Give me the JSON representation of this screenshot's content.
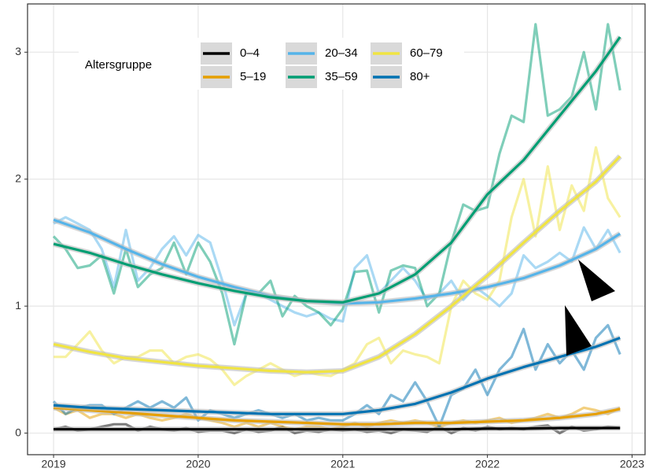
{
  "chart_data": {
    "type": "line",
    "legend_title": "Altersgruppe",
    "x": [
      2019.0,
      2019.083,
      2019.167,
      2019.25,
      2019.333,
      2019.417,
      2019.5,
      2019.583,
      2019.667,
      2019.75,
      2019.833,
      2019.917,
      2020.0,
      2020.083,
      2020.167,
      2020.25,
      2020.333,
      2020.417,
      2020.5,
      2020.583,
      2020.667,
      2020.75,
      2020.833,
      2020.917,
      2021.0,
      2021.083,
      2021.167,
      2021.25,
      2021.333,
      2021.417,
      2021.5,
      2021.583,
      2021.667,
      2021.75,
      2021.833,
      2021.917,
      2022.0,
      2022.083,
      2022.167,
      2022.25,
      2022.333,
      2022.417,
      2022.5,
      2022.583,
      2022.667,
      2022.75,
      2022.833,
      2022.917
    ],
    "trend_x": [
      2019,
      2019.25,
      2019.5,
      2019.75,
      2020,
      2020.25,
      2020.5,
      2020.75,
      2021,
      2021.25,
      2021.5,
      2021.75,
      2022,
      2022.25,
      2022.5,
      2022.75,
      2022.917
    ],
    "series": [
      {
        "name": "0–4",
        "color": "#000000",
        "values": [
          0.03,
          0.05,
          0.02,
          0.03,
          0.05,
          0.07,
          0.07,
          0.02,
          0.05,
          0.03,
          0.02,
          0.04,
          0.01,
          0.02,
          0.02,
          0.0,
          0.03,
          0.01,
          0.02,
          0.05,
          0.0,
          0.02,
          0.01,
          0.03,
          0.02,
          0.03,
          0.01,
          0.02,
          0.0,
          0.03,
          0.02,
          0.01,
          0.05,
          0.0,
          0.04,
          0.02,
          0.05,
          0.03,
          0.04,
          0.03,
          0.05,
          0.06,
          0.0,
          0.05,
          0.02,
          0.03,
          0.05,
          0.04
        ],
        "trend": [
          0.03,
          0.03,
          0.03,
          0.03,
          0.03,
          0.03,
          0.03,
          0.03,
          0.03,
          0.03,
          0.03,
          0.03,
          0.035,
          0.035,
          0.04,
          0.04,
          0.04
        ]
      },
      {
        "name": "5–19",
        "color": "#E69F00",
        "values": [
          0.2,
          0.15,
          0.18,
          0.12,
          0.15,
          0.15,
          0.12,
          0.15,
          0.12,
          0.1,
          0.12,
          0.15,
          0.12,
          0.1,
          0.08,
          0.05,
          0.08,
          0.05,
          0.08,
          0.05,
          0.03,
          0.05,
          0.05,
          0.03,
          0.05,
          0.08,
          0.05,
          0.08,
          0.1,
          0.08,
          0.1,
          0.08,
          0.05,
          0.08,
          0.1,
          0.08,
          0.1,
          0.12,
          0.08,
          0.1,
          0.12,
          0.15,
          0.12,
          0.15,
          0.2,
          0.18,
          0.15,
          0.2
        ],
        "trend": [
          0.2,
          0.18,
          0.16,
          0.14,
          0.12,
          0.1,
          0.09,
          0.08,
          0.07,
          0.07,
          0.08,
          0.08,
          0.09,
          0.1,
          0.12,
          0.15,
          0.19
        ]
      },
      {
        "name": "20–34",
        "color": "#56B4E9",
        "values": [
          1.65,
          1.7,
          1.65,
          1.6,
          1.45,
          1.15,
          1.6,
          1.2,
          1.3,
          1.45,
          1.55,
          1.4,
          1.56,
          1.5,
          1.2,
          0.85,
          1.1,
          1.1,
          1.05,
          1.0,
          0.95,
          0.92,
          0.95,
          0.9,
          0.88,
          1.3,
          1.4,
          1.1,
          1.2,
          1.3,
          1.2,
          1.05,
          1.1,
          1.2,
          1.05,
          1.15,
          1.08,
          1.0,
          1.1,
          1.4,
          1.3,
          1.35,
          1.42,
          1.35,
          1.62,
          1.45,
          1.6,
          1.42
        ],
        "trend": [
          1.68,
          1.58,
          1.45,
          1.33,
          1.23,
          1.15,
          1.08,
          1.04,
          1.02,
          1.03,
          1.06,
          1.1,
          1.15,
          1.22,
          1.32,
          1.45,
          1.57
        ]
      },
      {
        "name": "35–59",
        "color": "#009E73",
        "values": [
          1.55,
          1.45,
          1.3,
          1.32,
          1.4,
          1.1,
          1.45,
          1.15,
          1.25,
          1.3,
          1.5,
          1.25,
          1.5,
          1.35,
          1.1,
          0.7,
          1.1,
          1.1,
          1.2,
          0.92,
          1.08,
          1.0,
          0.95,
          0.85,
          0.98,
          1.27,
          1.28,
          0.95,
          1.28,
          1.32,
          1.3,
          1.0,
          1.1,
          1.5,
          1.8,
          1.75,
          1.78,
          2.2,
          2.5,
          2.45,
          3.22,
          2.5,
          2.55,
          2.65,
          3.0,
          2.55,
          3.22,
          2.7
        ],
        "trend": [
          1.49,
          1.42,
          1.33,
          1.25,
          1.18,
          1.12,
          1.07,
          1.04,
          1.03,
          1.1,
          1.25,
          1.5,
          1.88,
          2.15,
          2.5,
          2.85,
          3.12
        ]
      },
      {
        "name": "60–79",
        "color": "#F0E442",
        "values": [
          0.6,
          0.6,
          0.7,
          0.8,
          0.65,
          0.55,
          0.6,
          0.6,
          0.65,
          0.65,
          0.55,
          0.6,
          0.62,
          0.58,
          0.5,
          0.38,
          0.45,
          0.5,
          0.55,
          0.5,
          0.45,
          0.48,
          0.46,
          0.45,
          0.5,
          0.55,
          0.7,
          0.75,
          0.55,
          0.65,
          0.62,
          0.6,
          0.55,
          1.0,
          1.2,
          1.1,
          1.05,
          1.2,
          1.7,
          2.0,
          1.55,
          2.1,
          1.6,
          1.95,
          1.75,
          2.25,
          1.85,
          1.7
        ],
        "trend": [
          0.7,
          0.64,
          0.59,
          0.56,
          0.53,
          0.51,
          0.49,
          0.48,
          0.49,
          0.6,
          0.78,
          1.0,
          1.24,
          1.5,
          1.75,
          1.98,
          2.18
        ]
      },
      {
        "name": "80+",
        "color": "#0072B2",
        "values": [
          0.25,
          0.15,
          0.2,
          0.22,
          0.22,
          0.15,
          0.2,
          0.25,
          0.2,
          0.25,
          0.2,
          0.28,
          0.1,
          0.18,
          0.15,
          0.12,
          0.15,
          0.18,
          0.15,
          0.12,
          0.15,
          0.1,
          0.12,
          0.1,
          0.1,
          0.15,
          0.22,
          0.15,
          0.3,
          0.25,
          0.4,
          0.25,
          0.05,
          0.3,
          0.35,
          0.5,
          0.3,
          0.5,
          0.6,
          0.82,
          0.5,
          0.7,
          0.55,
          0.65,
          0.5,
          0.75,
          0.85,
          0.62
        ],
        "trend": [
          0.22,
          0.2,
          0.19,
          0.18,
          0.17,
          0.16,
          0.15,
          0.15,
          0.15,
          0.18,
          0.23,
          0.32,
          0.43,
          0.52,
          0.6,
          0.68,
          0.75
        ]
      }
    ],
    "xlim": [
      2018.82,
      2023.09
    ],
    "xticks": [
      2019,
      2020,
      2021,
      2022,
      2023
    ],
    "ylim": [
      -0.17,
      3.38
    ],
    "yticks": [
      0,
      1,
      2,
      3
    ],
    "grid": true
  }
}
